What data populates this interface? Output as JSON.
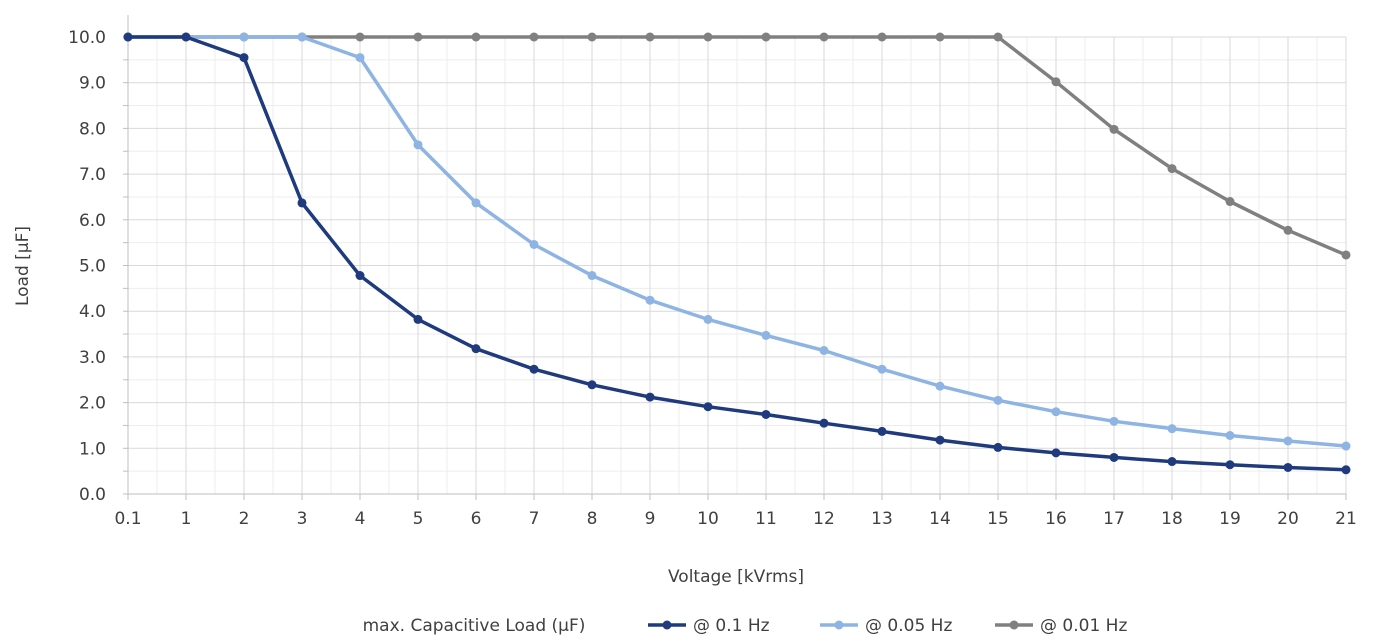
{
  "chart_data": {
    "type": "line",
    "title": "",
    "xlabel": "Voltage [kVrms]",
    "ylabel": "Load [µF]",
    "categories": [
      "0.1",
      "1",
      "2",
      "3",
      "4",
      "5",
      "6",
      "7",
      "8",
      "9",
      "10",
      "11",
      "12",
      "13",
      "14",
      "15",
      "16",
      "17",
      "18",
      "19",
      "20",
      "21"
    ],
    "ylim": [
      0,
      10
    ],
    "yticks": [
      "0.0",
      "1.0",
      "2.0",
      "3.0",
      "4.0",
      "5.0",
      "6.0",
      "7.0",
      "8.0",
      "9.0",
      "10.0"
    ],
    "grid": true,
    "legend_position": "bottom",
    "legend_title": "max. Capacitive Load (µF)",
    "series": [
      {
        "name": "@ 0.1 Hz",
        "color": "#1F3A7D",
        "values": [
          10.0,
          10.0,
          9.55,
          6.37,
          4.78,
          3.82,
          3.18,
          2.73,
          2.39,
          2.12,
          1.91,
          1.74,
          1.55,
          1.37,
          1.18,
          1.02,
          0.9,
          0.8,
          0.71,
          0.64,
          0.58,
          0.53
        ]
      },
      {
        "name": "@ 0.05 Hz",
        "color": "#8EB4E3",
        "values": [
          10.0,
          10.0,
          10.0,
          10.0,
          9.55,
          7.64,
          6.37,
          5.46,
          4.78,
          4.24,
          3.82,
          3.47,
          3.14,
          2.73,
          2.36,
          2.05,
          1.8,
          1.59,
          1.43,
          1.28,
          1.16,
          1.05
        ]
      },
      {
        "name": "@ 0.01 Hz",
        "color": "#808080",
        "values": [
          10.0,
          10.0,
          10.0,
          10.0,
          10.0,
          10.0,
          10.0,
          10.0,
          10.0,
          10.0,
          10.0,
          10.0,
          10.0,
          10.0,
          10.0,
          10.0,
          9.02,
          7.98,
          7.12,
          6.4,
          5.77,
          5.23
        ]
      }
    ]
  }
}
